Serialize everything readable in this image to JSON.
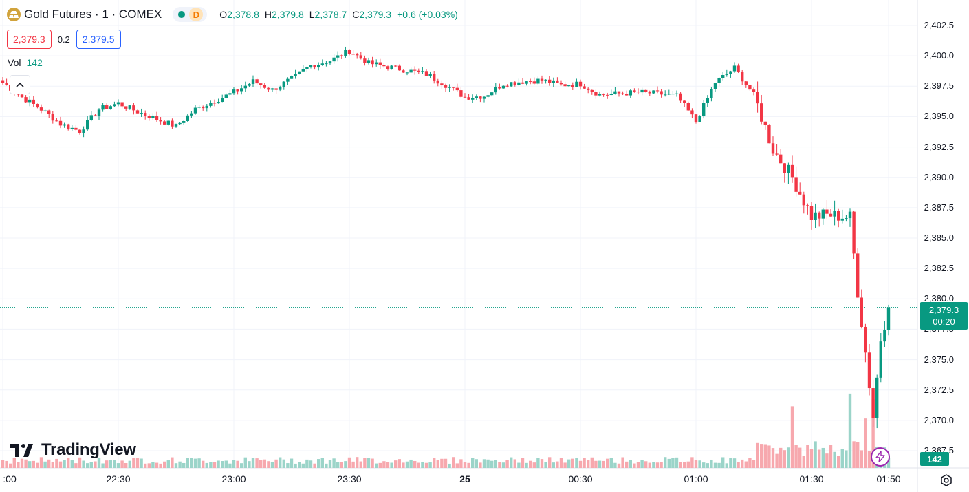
{
  "header": {
    "symbol_title": "Gold Futures · 1 · COMEX",
    "interval_badge": "D",
    "ohlc": {
      "o_label": "O",
      "o_value": "2,378.8",
      "h_label": "H",
      "h_value": "2,379.8",
      "l_label": "L",
      "l_value": "2,378.7",
      "c_label": "C",
      "c_value": "2,379.3",
      "change": "+0.6 (+0.03%)"
    },
    "bid": "2,379.3",
    "spread": "0.2",
    "ask": "2,379.5",
    "volume_label": "Vol",
    "volume_value": "142"
  },
  "price_tag": {
    "price": "2,379.3",
    "countdown": "00:20"
  },
  "volume_tag": "142",
  "brand": "TradingView",
  "icons": {
    "symbol": "gold-bars-icon",
    "market_status": "market-open-dot-icon",
    "collapse": "chevron-up-icon",
    "replay": "lightning-icon",
    "settings": "gear-icon",
    "logo": "tradingview-logo-icon"
  },
  "colors": {
    "up": "#089981",
    "down": "#f23645",
    "volume_up": "#9bd4c9",
    "volume_down": "#f7a8ae",
    "grid": "#f0f3fa",
    "last_price_line": "#089981"
  },
  "chart_data": {
    "type": "candlestick",
    "interval": "1 minute",
    "y_axis": {
      "ticks": [
        "2,402.5",
        "2,400.0",
        "2,397.5",
        "2,395.0",
        "2,392.5",
        "2,390.0",
        "2,387.5",
        "2,385.0",
        "2,382.5",
        "2,380.0",
        "2,377.5",
        "2,375.0",
        "2,372.5",
        "2,370.0",
        "2,367.5"
      ],
      "range": [
        2366.5,
        2403.5
      ]
    },
    "x_axis": {
      "ticks": [
        {
          "label": ":00",
          "bold": false,
          "time": "22:00"
        },
        {
          "label": "22:30",
          "bold": false,
          "time": "22:30"
        },
        {
          "label": "23:00",
          "bold": false,
          "time": "23:00"
        },
        {
          "label": "23:30",
          "bold": false,
          "time": "23:30"
        },
        {
          "label": "25",
          "bold": true,
          "time": "00:00"
        },
        {
          "label": "00:30",
          "bold": false,
          "time": "00:30"
        },
        {
          "label": "01:00",
          "bold": false,
          "time": "01:00"
        },
        {
          "label": "01:30",
          "bold": false,
          "time": "01:30"
        },
        {
          "label": "01:50",
          "bold": false,
          "time": "01:50"
        }
      ]
    },
    "last_price": 2379.3,
    "close_path": [
      [
        "22:00",
        2397.8
      ],
      [
        "22:05",
        2396.6
      ],
      [
        "22:10",
        2395.6
      ],
      [
        "22:15",
        2394.4
      ],
      [
        "22:20",
        2393.8
      ],
      [
        "22:25",
        2395.6
      ],
      [
        "22:30",
        2396.1
      ],
      [
        "22:35",
        2395.4
      ],
      [
        "22:40",
        2394.8
      ],
      [
        "22:45",
        2394.2
      ],
      [
        "22:50",
        2395.6
      ],
      [
        "22:55",
        2396.3
      ],
      [
        "23:00",
        2397.0
      ],
      [
        "23:05",
        2397.9
      ],
      [
        "23:10",
        2397.2
      ],
      [
        "23:15",
        2398.1
      ],
      [
        "23:20",
        2399.2
      ],
      [
        "23:25",
        2399.6
      ],
      [
        "23:30",
        2400.4
      ],
      [
        "23:35",
        2399.4
      ],
      [
        "23:40",
        2399.1
      ],
      [
        "23:45",
        2398.8
      ],
      [
        "23:50",
        2398.5
      ],
      [
        "23:55",
        2397.6
      ],
      [
        "00:00",
        2396.6
      ],
      [
        "00:05",
        2396.7
      ],
      [
        "00:10",
        2397.7
      ],
      [
        "00:15",
        2397.9
      ],
      [
        "00:20",
        2398.0
      ],
      [
        "00:25",
        2397.6
      ],
      [
        "00:30",
        2397.7
      ],
      [
        "00:35",
        2396.8
      ],
      [
        "00:40",
        2396.9
      ],
      [
        "00:45",
        2397.0
      ],
      [
        "00:50",
        2396.9
      ],
      [
        "00:55",
        2396.7
      ],
      [
        "01:00",
        2394.6
      ],
      [
        "01:05",
        2397.8
      ],
      [
        "01:10",
        2399.0
      ],
      [
        "01:15",
        2396.8
      ],
      [
        "01:20",
        2392.3
      ],
      [
        "01:25",
        2390.0
      ],
      [
        "01:30",
        2386.8
      ],
      [
        "01:35",
        2386.9
      ],
      [
        "01:40",
        2386.7
      ],
      [
        "01:42",
        2380.6
      ],
      [
        "01:44",
        2375.6
      ],
      [
        "01:46",
        2370.3
      ],
      [
        "01:48",
        2376.7
      ],
      [
        "01:50",
        2379.3
      ]
    ],
    "volume": {
      "last": 142,
      "spike_times": [
        "01:25",
        "01:40",
        "01:44",
        "01:46"
      ]
    }
  }
}
